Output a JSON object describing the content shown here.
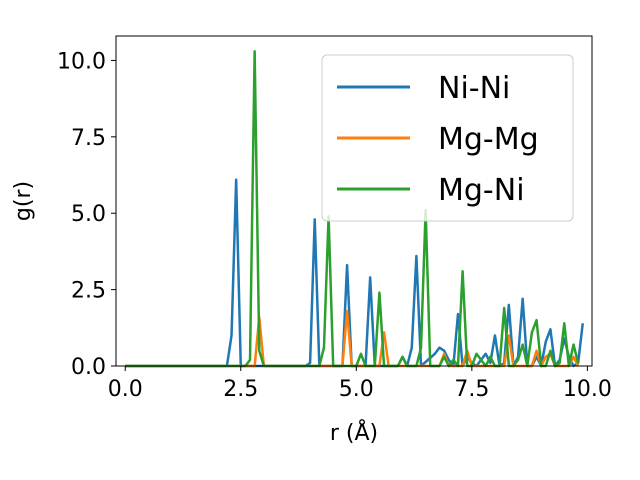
{
  "chart_data": {
    "type": "line",
    "xlabel": "r (Å)",
    "ylabel": "g(r)",
    "xlim": [
      -0.2,
      10.1
    ],
    "ylim": [
      0,
      10.8
    ],
    "xticks": [
      0.0,
      2.5,
      5.0,
      7.5,
      10.0
    ],
    "xtick_labels": [
      "0.0",
      "2.5",
      "5.0",
      "7.5",
      "10.0"
    ],
    "yticks": [
      0.0,
      2.5,
      5.0,
      7.5,
      10.0
    ],
    "ytick_labels": [
      "0.0",
      "2.5",
      "5.0",
      "7.5",
      "10.0"
    ],
    "grid": false,
    "legend_position": "top-right",
    "series": [
      {
        "name": "Ni-Ni",
        "color": "#1f77b4",
        "x": [
          0.0,
          2.2,
          2.3,
          2.4,
          2.5,
          3.9,
          4.0,
          4.1,
          4.2,
          4.7,
          4.8,
          4.9,
          5.2,
          5.3,
          5.4,
          5.9,
          6.0,
          6.1,
          6.2,
          6.3,
          6.4,
          6.7,
          6.8,
          6.9,
          7.0,
          7.1,
          7.2,
          7.3,
          7.4,
          7.5,
          7.6,
          7.7,
          7.8,
          7.9,
          8.0,
          8.1,
          8.2,
          8.3,
          8.4,
          8.5,
          8.6,
          8.7,
          8.8,
          8.9,
          9.0,
          9.1,
          9.2,
          9.3,
          9.4,
          9.5,
          9.6,
          9.7,
          9.8,
          9.9
        ],
        "y": [
          0.0,
          0.0,
          1.0,
          6.1,
          0.0,
          0.0,
          0.1,
          4.8,
          0.0,
          0.0,
          3.3,
          0.0,
          0.0,
          2.9,
          0.0,
          0.0,
          0.3,
          0.0,
          0.6,
          3.6,
          0.0,
          0.4,
          0.6,
          0.5,
          0.2,
          0.0,
          1.7,
          0.0,
          0.3,
          0.1,
          0.0,
          0.2,
          0.4,
          0.1,
          1.0,
          0.0,
          0.1,
          2.0,
          0.0,
          0.3,
          2.2,
          0.0,
          0.0,
          0.3,
          0.0,
          0.8,
          1.2,
          0.0,
          0.2,
          0.9,
          0.3,
          0.0,
          0.1,
          1.4
        ]
      },
      {
        "name": "Mg-Mg",
        "color": "#ff7f0e",
        "x": [
          0.0,
          2.8,
          2.9,
          3.0,
          4.7,
          4.8,
          4.9,
          5.5,
          5.6,
          5.7,
          6.8,
          6.9,
          7.0,
          7.3,
          7.4,
          7.5,
          8.2,
          8.3,
          8.4,
          8.8,
          8.9,
          9.0,
          9.1,
          9.2,
          9.3,
          9.6,
          9.7,
          9.8
        ],
        "y": [
          0.0,
          0.0,
          1.6,
          0.0,
          0.0,
          1.8,
          0.0,
          0.0,
          1.1,
          0.0,
          0.0,
          0.4,
          0.0,
          0.0,
          0.5,
          0.0,
          0.0,
          1.0,
          0.0,
          0.0,
          0.5,
          0.0,
          0.3,
          0.4,
          0.0,
          0.0,
          0.3,
          0.0
        ]
      },
      {
        "name": "Mg-Ni",
        "color": "#2ca02c",
        "x": [
          0.0,
          2.6,
          2.7,
          2.8,
          2.9,
          3.0,
          4.2,
          4.3,
          4.4,
          4.5,
          5.0,
          5.1,
          5.2,
          5.4,
          5.5,
          5.6,
          5.9,
          6.0,
          6.1,
          6.3,
          6.4,
          6.5,
          6.6,
          6.8,
          6.9,
          7.0,
          7.1,
          7.2,
          7.3,
          7.4,
          7.5,
          7.6,
          7.7,
          7.8,
          7.9,
          8.0,
          8.1,
          8.2,
          8.3,
          8.4,
          8.5,
          8.6,
          8.7,
          8.8,
          8.9,
          9.0,
          9.1,
          9.2,
          9.3,
          9.4,
          9.5,
          9.6,
          9.7,
          9.8
        ],
        "y": [
          0.0,
          0.0,
          0.2,
          10.3,
          0.5,
          0.0,
          0.0,
          0.6,
          4.9,
          0.0,
          0.0,
          0.4,
          0.0,
          0.0,
          2.4,
          0.0,
          0.0,
          0.3,
          0.0,
          0.0,
          0.6,
          5.1,
          0.0,
          0.0,
          0.3,
          0.0,
          0.2,
          0.0,
          3.1,
          0.0,
          0.0,
          0.4,
          0.2,
          0.0,
          0.3,
          0.0,
          0.0,
          1.9,
          0.0,
          0.0,
          0.2,
          0.7,
          0.0,
          1.1,
          1.5,
          0.0,
          0.0,
          0.5,
          0.0,
          0.1,
          1.4,
          0.0,
          0.7,
          0.1
        ]
      }
    ]
  }
}
